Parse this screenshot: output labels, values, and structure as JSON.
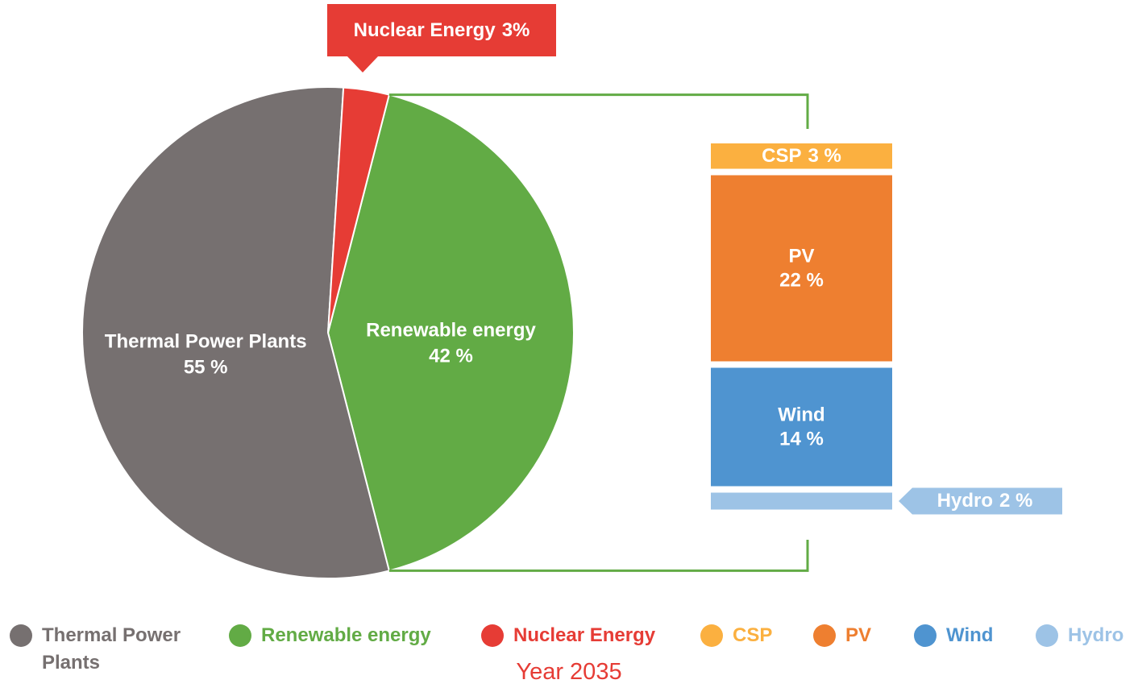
{
  "chart_data": {
    "type": "pie",
    "categories": [
      "Thermal Power Plants",
      "Renewable energy",
      "Nuclear Energy"
    ],
    "values": [
      55,
      42,
      3
    ],
    "value_labels": [
      "55 %",
      "42 %",
      "3%"
    ],
    "colors": [
      "#767070",
      "#62ab45",
      "#e63c35"
    ],
    "bar": {
      "categories": [
        "CSP",
        "PV",
        "Wind",
        "Hydro"
      ],
      "values": [
        3,
        22,
        14,
        2
      ],
      "value_labels": [
        "3 %",
        "22 %",
        "14 %",
        "2 %"
      ],
      "colors": [
        "#fbb040",
        "#ee7f30",
        "#4f94d0",
        "#9dc3e6"
      ]
    },
    "caption": "Year 2035"
  }
}
